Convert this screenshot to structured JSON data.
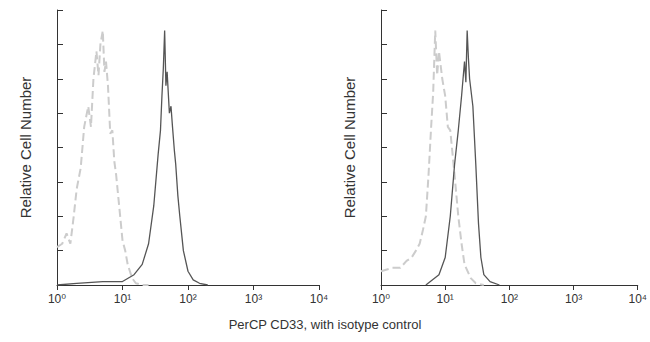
{
  "xlabel": "PerCP CD33, with isotype control",
  "chart_data": [
    {
      "type": "line",
      "ylabel": "Relative Cell Number",
      "log": "x",
      "grid": false,
      "tick_labels": "x",
      "xlim": [
        1,
        10000
      ],
      "xticks": [
        {
          "value": 1,
          "label": "10⁰"
        },
        {
          "value": 10,
          "label": "10¹"
        },
        {
          "value": 100,
          "label": "10²"
        },
        {
          "value": 1000,
          "label": "10³"
        },
        {
          "value": 10000,
          "label": "10⁴"
        }
      ],
      "ylim": [
        0,
        8
      ],
      "yticks": [
        0,
        1,
        2,
        3,
        4,
        5,
        6,
        7,
        8
      ],
      "series": [
        {
          "color": "#cccccc",
          "line_style": "dashed",
          "x": [
            1,
            1.2,
            1.4,
            1.6,
            1.8,
            2,
            2.3,
            2.6,
            3,
            3.3,
            3.6,
            4,
            4.3,
            4.6,
            5,
            5.3,
            5.6,
            6,
            6.5,
            7,
            7.5,
            8,
            9,
            10,
            11,
            12,
            14,
            16,
            20,
            25
          ],
          "values": [
            1.1,
            1.2,
            1.5,
            1.2,
            2.0,
            2.8,
            3.4,
            4.6,
            5.2,
            4.6,
            6.0,
            6.8,
            6.1,
            7.0,
            7.4,
            6.2,
            6.5,
            5.8,
            4.4,
            4.5,
            3.6,
            3.2,
            2.2,
            1.3,
            1.0,
            0.6,
            0.2,
            0.05,
            0,
            0
          ]
        },
        {
          "color": "#555555",
          "line_style": "solid",
          "x": [
            1,
            2,
            5,
            10,
            15,
            20,
            25,
            30,
            35,
            38,
            40,
            42,
            44,
            46,
            48,
            52,
            55,
            58,
            62,
            65,
            70,
            75,
            85,
            100,
            120,
            150,
            200
          ],
          "values": [
            0,
            0.05,
            0.1,
            0.1,
            0.3,
            0.6,
            1.2,
            2.3,
            3.8,
            4.5,
            5.5,
            6.3,
            7.4,
            5.8,
            6.2,
            5.0,
            5.2,
            4.6,
            3.9,
            3.5,
            2.6,
            2.0,
            1.0,
            0.4,
            0.15,
            0.05,
            0
          ]
        }
      ]
    },
    {
      "type": "line",
      "ylabel": "Relative Cell Number",
      "log": "x",
      "grid": false,
      "tick_labels": "x",
      "xlim": [
        1,
        10000
      ],
      "xticks": [
        {
          "value": 1,
          "label": "10⁰"
        },
        {
          "value": 10,
          "label": "10¹"
        },
        {
          "value": 100,
          "label": "10²"
        },
        {
          "value": 1000,
          "label": "10³"
        },
        {
          "value": 10000,
          "label": "10⁴"
        }
      ],
      "ylim": [
        0,
        8
      ],
      "yticks": [
        0,
        1,
        2,
        3,
        4,
        5,
        6,
        7,
        8
      ],
      "series": [
        {
          "color": "#cccccc",
          "line_style": "dashed",
          "x": [
            1,
            1.5,
            2,
            2.5,
            3,
            3.5,
            4,
            4.5,
            5,
            5.5,
            6,
            6.5,
            7,
            7.5,
            8,
            9,
            10,
            11,
            12,
            14,
            16,
            18,
            20,
            25,
            30,
            40
          ],
          "values": [
            0.4,
            0.5,
            0.5,
            0.7,
            0.8,
            1.0,
            1.2,
            1.6,
            2.0,
            3.2,
            4.5,
            5.6,
            7.4,
            6.1,
            6.8,
            6.0,
            5.5,
            4.6,
            4.5,
            3.2,
            2.0,
            1.2,
            0.6,
            0.2,
            0.05,
            0
          ]
        },
        {
          "color": "#555555",
          "line_style": "solid",
          "x": [
            5,
            8,
            10,
            12,
            14,
            16,
            18,
            20,
            21,
            22,
            23,
            24,
            27,
            30,
            33,
            36,
            40,
            50,
            70
          ],
          "values": [
            0,
            0.3,
            0.8,
            2.0,
            3.5,
            4.5,
            5.5,
            6.5,
            5.9,
            7.4,
            6.6,
            6.0,
            5.2,
            3.5,
            1.8,
            0.8,
            0.3,
            0.1,
            0
          ]
        }
      ]
    }
  ]
}
